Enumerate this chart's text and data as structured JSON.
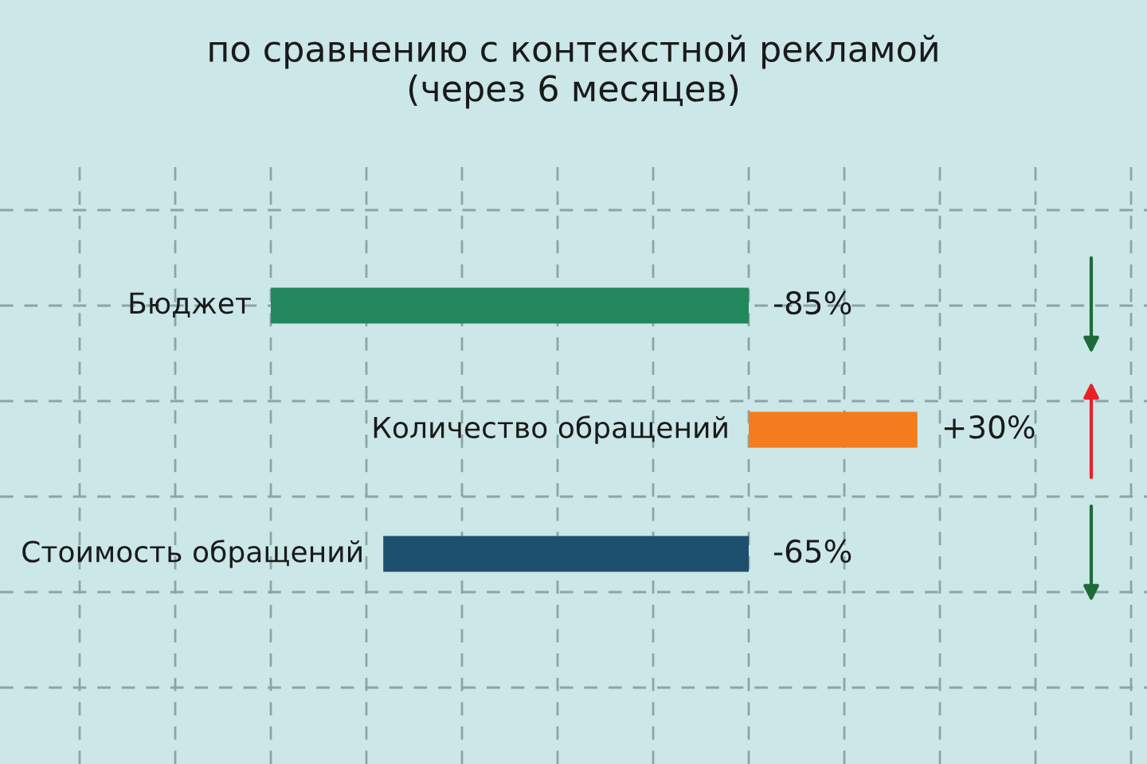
{
  "chart_data": {
    "type": "bar",
    "orientation": "horizontal",
    "title": "по сравнению с контекстной рекламой\n(через 6 месяцев)",
    "categories": [
      "Бюджет",
      "Количество обращений",
      "Стоимость обращений"
    ],
    "values": [
      -85,
      30,
      -65
    ],
    "colors": [
      "#22875a",
      "#f47c1c",
      "#1d4f6e"
    ],
    "value_labels": [
      "-85%",
      "+30%",
      "-65%"
    ],
    "grid": true
  }
}
